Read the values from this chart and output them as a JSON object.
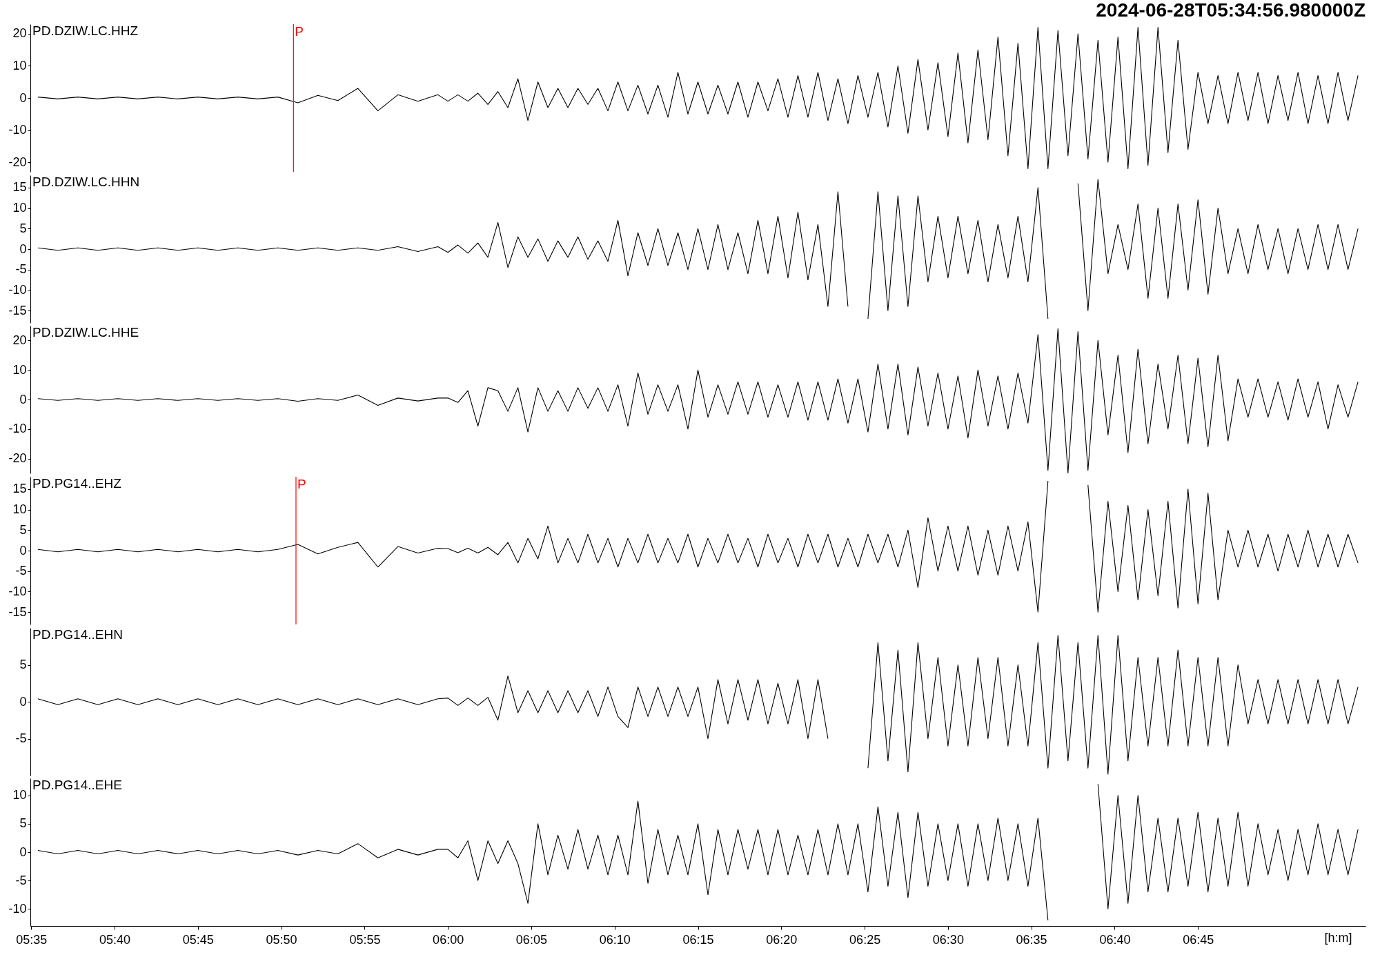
{
  "chart_data": [
    {
      "type": "line",
      "title": "PD.DZIW.LC.HHZ",
      "annotations": [
        "2024-06-28T05:34:56.980000Z"
      ],
      "tick_labels": "y",
      "xlim": [
        5.5825,
        6.9175
      ],
      "ylim": [
        -23,
        23
      ],
      "yticks": [
        -20,
        -10,
        0,
        10,
        20
      ],
      "ref_lines": [
        {
          "axis": "x",
          "value": 5.8456,
          "label": "P",
          "color": "#ff0000"
        }
      ],
      "x": [
        5.59,
        5.61,
        5.63,
        5.65,
        5.67,
        5.69,
        5.71,
        5.73,
        5.75,
        5.77,
        5.79,
        5.81,
        5.83,
        5.85,
        5.87,
        5.89,
        5.91,
        5.93,
        5.95,
        5.97,
        5.99,
        6,
        6.01,
        6.02,
        6.03,
        6.04,
        6.05,
        6.06,
        6.07,
        6.08,
        6.09,
        6.1,
        6.11,
        6.12,
        6.13,
        6.14,
        6.15,
        6.16,
        6.17,
        6.18,
        6.19,
        6.2,
        6.21,
        6.22,
        6.23,
        6.24,
        6.25,
        6.26,
        6.27,
        6.28,
        6.29,
        6.3,
        6.31,
        6.32,
        6.33,
        6.34,
        6.35,
        6.36,
        6.37,
        6.38,
        6.39,
        6.4,
        6.41,
        6.42,
        6.43,
        6.44,
        6.45,
        6.46,
        6.47,
        6.48,
        6.49,
        6.5,
        6.51,
        6.52,
        6.53,
        6.54,
        6.55,
        6.56,
        6.57,
        6.58,
        6.59,
        6.6,
        6.61,
        6.62,
        6.63,
        6.64,
        6.65,
        6.66,
        6.67,
        6.68,
        6.69,
        6.7,
        6.71,
        6.72,
        6.73,
        6.74,
        6.75,
        6.76,
        6.77,
        6.78,
        6.79,
        6.8,
        6.81,
        6.82,
        6.83,
        6.84,
        6.85,
        6.86,
        6.87,
        6.88,
        6.89,
        6.9,
        6.91
      ],
      "series": [
        {
          "color": "#000000",
          "values": [
            0.3,
            -0.3,
            0.3,
            -0.3,
            0.3,
            -0.3,
            0.3,
            -0.3,
            0.3,
            -0.3,
            0.3,
            -0.3,
            0.3,
            -1.5,
            0.8,
            -0.8,
            3,
            -4,
            1,
            -1,
            1,
            -1,
            1,
            -1,
            1.5,
            -2,
            2,
            -3,
            6,
            -7,
            5,
            -3,
            3,
            -3,
            3,
            -2,
            3,
            -4,
            5,
            -4,
            4,
            -5,
            4,
            -6,
            8,
            -5,
            5,
            -5,
            4,
            -5,
            5,
            -6,
            5,
            -4,
            6,
            -6,
            7,
            -6,
            8,
            -7,
            6,
            -8,
            7,
            -6,
            8,
            -9,
            10,
            -11,
            12,
            -10,
            11,
            -12,
            14,
            -14,
            15,
            -13,
            19,
            -18,
            17,
            -22,
            22,
            -22,
            21,
            -18,
            20,
            -19,
            18,
            -20,
            19,
            -22,
            22,
            -21,
            22,
            -17,
            18,
            -16,
            8,
            -8,
            7,
            -8,
            8,
            -7,
            8,
            -8,
            7,
            -7,
            8,
            -8,
            7,
            -8,
            8,
            -7,
            7
          ]
        }
      ]
    },
    {
      "type": "line",
      "title": "PD.DZIW.LC.HHN",
      "tick_labels": "y",
      "xlim": [
        5.5825,
        6.9175
      ],
      "ylim": [
        -18,
        18
      ],
      "yticks": [
        -15,
        -10,
        -5,
        0,
        5,
        10,
        15
      ],
      "x": [
        5.59,
        5.61,
        5.63,
        5.65,
        5.67,
        5.69,
        5.71,
        5.73,
        5.75,
        5.77,
        5.79,
        5.81,
        5.83,
        5.85,
        5.87,
        5.89,
        5.91,
        5.93,
        5.95,
        5.97,
        5.99,
        6,
        6.01,
        6.02,
        6.03,
        6.04,
        6.05,
        6.06,
        6.07,
        6.08,
        6.09,
        6.1,
        6.11,
        6.12,
        6.13,
        6.14,
        6.15,
        6.16,
        6.17,
        6.18,
        6.19,
        6.2,
        6.21,
        6.22,
        6.23,
        6.24,
        6.25,
        6.26,
        6.27,
        6.28,
        6.29,
        6.3,
        6.31,
        6.32,
        6.33,
        6.34,
        6.35,
        6.36,
        6.37,
        6.38,
        6.39,
        6.4,
        6.41,
        6.42,
        6.43,
        6.44,
        6.45,
        6.46,
        6.47,
        6.48,
        6.49,
        6.5,
        6.51,
        6.52,
        6.53,
        6.54,
        6.55,
        6.56,
        6.57,
        6.58,
        6.59,
        6.6,
        6.61,
        6.62,
        6.63,
        6.64,
        6.65,
        6.66,
        6.67,
        6.68,
        6.69,
        6.7,
        6.71,
        6.72,
        6.73,
        6.74,
        6.75,
        6.76,
        6.77,
        6.78,
        6.79,
        6.8,
        6.81,
        6.82,
        6.83,
        6.84,
        6.85,
        6.86,
        6.87,
        6.88,
        6.89,
        6.9,
        6.91
      ],
      "series": [
        {
          "color": "#000000",
          "values": [
            0.3,
            -0.3,
            0.3,
            -0.3,
            0.3,
            -0.3,
            0.3,
            -0.3,
            0.3,
            -0.3,
            0.3,
            -0.3,
            0.3,
            -0.3,
            0.3,
            -0.3,
            0.3,
            -0.3,
            0.6,
            -0.6,
            0.6,
            -0.8,
            1,
            -1,
            1.5,
            -2,
            6.5,
            -4.5,
            3,
            -2,
            2.5,
            -3,
            2,
            -2,
            3,
            -2.5,
            2,
            -3,
            7,
            -6.5,
            4,
            -4,
            5,
            -4,
            4,
            -5,
            5,
            -5,
            6,
            -5,
            4,
            -6,
            7,
            -6,
            8,
            -7,
            9,
            -7.5,
            6,
            -14,
            14,
            -14,
            null,
            -17,
            14,
            -15,
            13,
            -14,
            13,
            -8,
            8,
            -7,
            8,
            -6,
            7,
            -8,
            6,
            -7,
            8,
            -8,
            15,
            -17,
            null,
            null,
            16,
            -15,
            17,
            -6,
            6,
            -5,
            11,
            -12,
            10,
            -12,
            11,
            -10,
            12,
            -11,
            10,
            -6,
            5,
            -6,
            6,
            -5,
            5,
            -6,
            5,
            -5,
            6,
            -5,
            6,
            -5,
            5
          ]
        }
      ]
    },
    {
      "type": "line",
      "title": "PD.DZIW.LC.HHE",
      "tick_labels": "y",
      "xlim": [
        5.5825,
        6.9175
      ],
      "ylim": [
        -25,
        25
      ],
      "yticks": [
        -20,
        -10,
        0,
        10,
        20
      ],
      "x": [
        5.59,
        5.61,
        5.63,
        5.65,
        5.67,
        5.69,
        5.71,
        5.73,
        5.75,
        5.77,
        5.79,
        5.81,
        5.83,
        5.85,
        5.87,
        5.89,
        5.91,
        5.93,
        5.95,
        5.97,
        5.99,
        6,
        6.01,
        6.02,
        6.03,
        6.04,
        6.05,
        6.06,
        6.07,
        6.08,
        6.09,
        6.1,
        6.11,
        6.12,
        6.13,
        6.14,
        6.15,
        6.16,
        6.17,
        6.18,
        6.19,
        6.2,
        6.21,
        6.22,
        6.23,
        6.24,
        6.25,
        6.26,
        6.27,
        6.28,
        6.29,
        6.3,
        6.31,
        6.32,
        6.33,
        6.34,
        6.35,
        6.36,
        6.37,
        6.38,
        6.39,
        6.4,
        6.41,
        6.42,
        6.43,
        6.44,
        6.45,
        6.46,
        6.47,
        6.48,
        6.49,
        6.5,
        6.51,
        6.52,
        6.53,
        6.54,
        6.55,
        6.56,
        6.57,
        6.58,
        6.59,
        6.6,
        6.61,
        6.62,
        6.63,
        6.64,
        6.65,
        6.66,
        6.67,
        6.68,
        6.69,
        6.7,
        6.71,
        6.72,
        6.73,
        6.74,
        6.75,
        6.76,
        6.77,
        6.78,
        6.79,
        6.8,
        6.81,
        6.82,
        6.83,
        6.84,
        6.85,
        6.86,
        6.87,
        6.88,
        6.89,
        6.9,
        6.91
      ],
      "series": [
        {
          "color": "#000000",
          "values": [
            0.3,
            -0.3,
            0.3,
            -0.3,
            0.3,
            -0.3,
            0.3,
            -0.3,
            0.3,
            -0.3,
            0.3,
            -0.3,
            0.3,
            -0.6,
            0.3,
            -0.3,
            1.5,
            -2,
            0.5,
            -0.5,
            0.5,
            0.5,
            -1,
            3,
            -9,
            4,
            3,
            -4,
            4,
            -11,
            4,
            -4,
            3,
            -4,
            4,
            -3,
            4,
            -4,
            5,
            -9,
            9,
            -5,
            5,
            -4,
            5,
            -10,
            10,
            -6,
            5,
            -5,
            6,
            -5,
            6,
            -6,
            5,
            -6,
            6,
            -7,
            6,
            -7,
            7,
            -8,
            7,
            -11,
            12,
            -10,
            12,
            -12,
            11,
            -9,
            9,
            -10,
            8,
            -13,
            10,
            -9,
            8,
            -10,
            9,
            -8,
            22,
            -24,
            24,
            -25,
            23,
            -24,
            20,
            -12,
            15,
            -18,
            17,
            -15,
            12,
            -10,
            15,
            -15,
            14,
            -16,
            15,
            -14,
            7,
            -6,
            7,
            -6,
            6,
            -7,
            7,
            -6,
            6,
            -10,
            5,
            -6,
            6
          ]
        }
      ]
    },
    {
      "type": "line",
      "title": "PD.PG14..EHZ",
      "tick_labels": "y",
      "xlim": [
        5.5825,
        6.9175
      ],
      "ylim": [
        -18,
        18
      ],
      "yticks": [
        -15,
        -10,
        -5,
        0,
        5,
        10,
        15
      ],
      "ref_lines": [
        {
          "axis": "x",
          "value": 5.8481,
          "label": "P",
          "color": "#ff0000"
        }
      ],
      "x": [
        5.59,
        5.61,
        5.63,
        5.65,
        5.67,
        5.69,
        5.71,
        5.73,
        5.75,
        5.77,
        5.79,
        5.81,
        5.83,
        5.85,
        5.87,
        5.89,
        5.91,
        5.93,
        5.95,
        5.97,
        5.99,
        6,
        6.01,
        6.02,
        6.03,
        6.04,
        6.05,
        6.06,
        6.07,
        6.08,
        6.09,
        6.1,
        6.11,
        6.12,
        6.13,
        6.14,
        6.15,
        6.16,
        6.17,
        6.18,
        6.19,
        6.2,
        6.21,
        6.22,
        6.23,
        6.24,
        6.25,
        6.26,
        6.27,
        6.28,
        6.29,
        6.3,
        6.31,
        6.32,
        6.33,
        6.34,
        6.35,
        6.36,
        6.37,
        6.38,
        6.39,
        6.4,
        6.41,
        6.42,
        6.43,
        6.44,
        6.45,
        6.46,
        6.47,
        6.48,
        6.49,
        6.5,
        6.51,
        6.52,
        6.53,
        6.54,
        6.55,
        6.56,
        6.57,
        6.58,
        6.59,
        6.6,
        6.61,
        6.62,
        6.63,
        6.64,
        6.65,
        6.66,
        6.67,
        6.68,
        6.69,
        6.7,
        6.71,
        6.72,
        6.73,
        6.74,
        6.75,
        6.76,
        6.77,
        6.78,
        6.79,
        6.8,
        6.81,
        6.82,
        6.83,
        6.84,
        6.85,
        6.86,
        6.87,
        6.88,
        6.89,
        6.9,
        6.91
      ],
      "series": [
        {
          "color": "#000000",
          "values": [
            0.3,
            -0.3,
            0.3,
            -0.3,
            0.3,
            -0.3,
            0.3,
            -0.3,
            0.3,
            -0.3,
            0.3,
            -0.3,
            0.3,
            1.5,
            -0.8,
            0.8,
            2,
            -4,
            1,
            -0.6,
            0.6,
            0.5,
            -0.5,
            0.6,
            -0.6,
            0.8,
            -1,
            2,
            -3,
            3,
            -2,
            6,
            -3,
            3,
            -3,
            4,
            -3,
            3,
            -4,
            3,
            -3,
            4,
            -3,
            3,
            -3,
            4,
            -4,
            3,
            -3,
            4,
            -3,
            3,
            -4,
            4,
            -3,
            3,
            -4,
            4,
            -3,
            4,
            -4,
            3,
            -4,
            4,
            -3,
            4,
            -4,
            5,
            -9,
            8,
            -5,
            6,
            -5,
            6,
            -6,
            5,
            -6,
            6,
            -5,
            7,
            -15,
            17,
            null,
            null,
            null,
            16,
            -15,
            12,
            -10,
            11,
            -12,
            10,
            -11,
            12,
            -14,
            15,
            -13,
            14,
            -12,
            5,
            -4,
            5,
            -4,
            4,
            -5,
            4,
            -4,
            5,
            -4,
            4,
            -4,
            4,
            -3
          ]
        }
      ]
    },
    {
      "type": "line",
      "title": "PD.PG14..EHN",
      "tick_labels": "y",
      "xlim": [
        5.5825,
        6.9175
      ],
      "ylim": [
        -10,
        10
      ],
      "yticks": [
        -5,
        0,
        5
      ],
      "x": [
        5.59,
        5.61,
        5.63,
        5.65,
        5.67,
        5.69,
        5.71,
        5.73,
        5.75,
        5.77,
        5.79,
        5.81,
        5.83,
        5.85,
        5.87,
        5.89,
        5.91,
        5.93,
        5.95,
        5.97,
        5.99,
        6,
        6.01,
        6.02,
        6.03,
        6.04,
        6.05,
        6.06,
        6.07,
        6.08,
        6.09,
        6.1,
        6.11,
        6.12,
        6.13,
        6.14,
        6.15,
        6.16,
        6.17,
        6.18,
        6.19,
        6.2,
        6.21,
        6.22,
        6.23,
        6.24,
        6.25,
        6.26,
        6.27,
        6.28,
        6.29,
        6.3,
        6.31,
        6.32,
        6.33,
        6.34,
        6.35,
        6.36,
        6.37,
        6.38,
        6.39,
        6.4,
        6.41,
        6.42,
        6.43,
        6.44,
        6.45,
        6.46,
        6.47,
        6.48,
        6.49,
        6.5,
        6.51,
        6.52,
        6.53,
        6.54,
        6.55,
        6.56,
        6.57,
        6.58,
        6.59,
        6.6,
        6.61,
        6.62,
        6.63,
        6.64,
        6.65,
        6.66,
        6.67,
        6.68,
        6.69,
        6.7,
        6.71,
        6.72,
        6.73,
        6.74,
        6.75,
        6.76,
        6.77,
        6.78,
        6.79,
        6.8,
        6.81,
        6.82,
        6.83,
        6.84,
        6.85,
        6.86,
        6.87,
        6.88,
        6.89,
        6.9,
        6.91
      ],
      "series": [
        {
          "color": "#000000",
          "values": [
            0.4,
            -0.4,
            0.4,
            -0.4,
            0.4,
            -0.4,
            0.4,
            -0.4,
            0.4,
            -0.4,
            0.4,
            -0.4,
            0.4,
            -0.4,
            0.4,
            -0.4,
            0.4,
            -0.4,
            0.4,
            -0.4,
            0.4,
            0.5,
            -0.5,
            0.5,
            -0.5,
            0.6,
            -2.5,
            3.5,
            -1.5,
            1.5,
            -1.5,
            1.5,
            -1.5,
            1.5,
            -1.5,
            1.5,
            -2,
            2,
            -2,
            -3.5,
            2,
            -2,
            2,
            -2,
            2,
            -2,
            2,
            -5,
            3,
            -3,
            3,
            -2.5,
            3,
            -3,
            2.5,
            -3,
            3,
            -5,
            3,
            -5,
            null,
            null,
            null,
            -9,
            8,
            -8,
            7,
            -9.5,
            8,
            -5,
            6,
            -6,
            5,
            -6,
            6,
            -5,
            6,
            -6,
            5,
            -6,
            8,
            -9,
            9,
            -8,
            8,
            -9,
            9,
            -9.8,
            9,
            -8,
            6,
            -6,
            6,
            -6,
            7,
            -6,
            6,
            -6,
            6,
            -6,
            5,
            -3,
            3,
            -3,
            3,
            -3,
            3,
            -3,
            3,
            -3,
            3,
            -3,
            2
          ]
        }
      ]
    },
    {
      "type": "line",
      "title": "PD.PG14..EHE",
      "xlabel": "[h:m]",
      "xlim": [
        5.5825,
        6.9175
      ],
      "ylim": [
        -13,
        13
      ],
      "yticks": [
        -10,
        -5,
        0,
        5,
        10
      ],
      "xticks": [
        {
          "value": 5.5833,
          "label": "05:35"
        },
        {
          "value": 5.6667,
          "label": "05:40"
        },
        {
          "value": 5.75,
          "label": "05:45"
        },
        {
          "value": 5.8333,
          "label": "05:50"
        },
        {
          "value": 5.9167,
          "label": "05:55"
        },
        {
          "value": 6,
          "label": "06:00"
        },
        {
          "value": 6.0833,
          "label": "06:05"
        },
        {
          "value": 6.1667,
          "label": "06:10"
        },
        {
          "value": 6.25,
          "label": "06:15"
        },
        {
          "value": 6.3333,
          "label": "06:20"
        },
        {
          "value": 6.4167,
          "label": "06:25"
        },
        {
          "value": 6.5,
          "label": "06:30"
        },
        {
          "value": 6.5833,
          "label": "06:35"
        },
        {
          "value": 6.6667,
          "label": "06:40"
        },
        {
          "value": 6.75,
          "label": "06:45"
        }
      ],
      "x": [
        5.59,
        5.61,
        5.63,
        5.65,
        5.67,
        5.69,
        5.71,
        5.73,
        5.75,
        5.77,
        5.79,
        5.81,
        5.83,
        5.85,
        5.87,
        5.89,
        5.91,
        5.93,
        5.95,
        5.97,
        5.99,
        6,
        6.01,
        6.02,
        6.03,
        6.04,
        6.05,
        6.06,
        6.07,
        6.08,
        6.09,
        6.1,
        6.11,
        6.12,
        6.13,
        6.14,
        6.15,
        6.16,
        6.17,
        6.18,
        6.19,
        6.2,
        6.21,
        6.22,
        6.23,
        6.24,
        6.25,
        6.26,
        6.27,
        6.28,
        6.29,
        6.3,
        6.31,
        6.32,
        6.33,
        6.34,
        6.35,
        6.36,
        6.37,
        6.38,
        6.39,
        6.4,
        6.41,
        6.42,
        6.43,
        6.44,
        6.45,
        6.46,
        6.47,
        6.48,
        6.49,
        6.5,
        6.51,
        6.52,
        6.53,
        6.54,
        6.55,
        6.56,
        6.57,
        6.58,
        6.59,
        6.6,
        6.61,
        6.62,
        6.63,
        6.64,
        6.65,
        6.66,
        6.67,
        6.68,
        6.69,
        6.7,
        6.71,
        6.72,
        6.73,
        6.74,
        6.75,
        6.76,
        6.77,
        6.78,
        6.79,
        6.8,
        6.81,
        6.82,
        6.83,
        6.84,
        6.85,
        6.86,
        6.87,
        6.88,
        6.89,
        6.9,
        6.91
      ],
      "series": [
        {
          "color": "#000000",
          "values": [
            0.3,
            -0.3,
            0.3,
            -0.3,
            0.3,
            -0.3,
            0.3,
            -0.3,
            0.3,
            -0.3,
            0.3,
            -0.3,
            0.3,
            -0.5,
            0.3,
            -0.3,
            1.5,
            -1,
            0.5,
            -0.5,
            0.5,
            0.5,
            -1,
            2,
            -5,
            2,
            -2,
            2,
            -2,
            -9,
            5,
            -4,
            3,
            -3,
            4,
            -3,
            3,
            -4,
            3,
            -4,
            9,
            -5.5,
            4,
            -4,
            3,
            -4,
            5,
            -7.5,
            4,
            -4,
            4,
            -3,
            4,
            -4,
            4,
            -4,
            3,
            -4,
            4,
            -4,
            5,
            -4,
            5,
            -7,
            8,
            -6,
            7,
            -8,
            7,
            -6,
            5,
            -5,
            5,
            -6,
            5,
            -5,
            6,
            -5,
            5,
            -6,
            6,
            -12,
            null,
            null,
            null,
            null,
            12,
            -10,
            10,
            -9,
            10,
            -7,
            6,
            -7,
            6,
            -6,
            7,
            -7,
            6,
            -6,
            7,
            -6,
            5,
            -4,
            4,
            -5,
            4,
            -4,
            5,
            -4,
            4,
            -4,
            4
          ]
        }
      ]
    }
  ]
}
